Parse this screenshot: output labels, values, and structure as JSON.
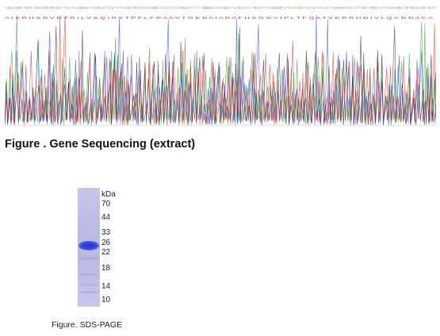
{
  "figure1": {
    "caption": "Figure . Gene Sequencing (extract)",
    "amino_acid_row": "A I S R H S R V D T R I L V S Q I R Y T P F L F R A A V T G E D A I A R A F H S G G V I P L T F Q A T V E R R H D I V L Q C D D A C A",
    "trace_colors": {
      "A": "#2e9b2e",
      "C": "#2a3fd0",
      "G": "#222222",
      "T": "#d02a2a"
    }
  },
  "figure2": {
    "caption": "Figure. SDS-PAGE",
    "unit": "kDa",
    "markers": [
      "70",
      "44",
      "33",
      "26",
      "22",
      "18",
      "14",
      "10"
    ],
    "band_color": "#2338d6",
    "gel_color": "#b9bee4"
  }
}
